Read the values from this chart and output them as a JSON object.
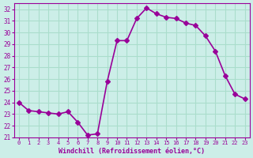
{
  "x": [
    0,
    1,
    2,
    3,
    4,
    5,
    6,
    7,
    8,
    9,
    10,
    11,
    12,
    13,
    14,
    15,
    16,
    17,
    18,
    19,
    20,
    21,
    22,
    23
  ],
  "y": [
    24.0,
    23.3,
    23.2,
    23.1,
    23.0,
    23.2,
    22.3,
    21.2,
    21.3,
    25.8,
    29.3,
    29.3,
    31.2,
    32.1,
    31.6,
    31.3,
    31.2,
    30.8,
    30.6,
    29.7,
    28.4,
    26.3,
    24.7,
    24.3
  ],
  "line_color": "#990099",
  "marker": "D",
  "marker_size": 3,
  "background_color": "#cceee8",
  "grid_color": "#aaddcc",
  "xlabel": "Windchill (Refroidissement éolien,°C)",
  "xlabel_color": "#990099",
  "tick_color": "#990099",
  "ylim": [
    21,
    32.5
  ],
  "xlim": [
    -0.5,
    23.5
  ],
  "yticks": [
    21,
    22,
    23,
    24,
    25,
    26,
    27,
    28,
    29,
    30,
    31,
    32
  ],
  "xticks": [
    0,
    1,
    2,
    3,
    4,
    5,
    6,
    7,
    8,
    9,
    10,
    11,
    12,
    13,
    14,
    15,
    16,
    17,
    18,
    19,
    20,
    21,
    22,
    23
  ]
}
